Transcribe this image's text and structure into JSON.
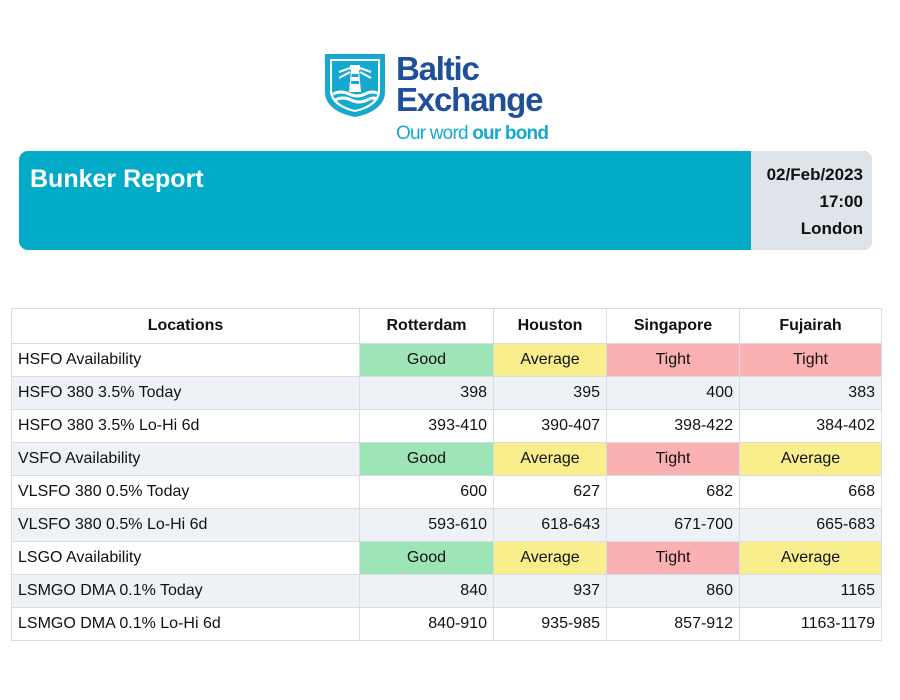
{
  "brand": {
    "name_line1": "Baltic",
    "name_line2": "Exchange",
    "tagline_regular": "Our word ",
    "tagline_bold": "our bond",
    "colors": {
      "navy": "#1f4f9a",
      "cyan": "#16a9cf"
    }
  },
  "header": {
    "title": "Bunker Report",
    "date": "02/Feb/2023",
    "time": "17:00",
    "city": "London",
    "colors": {
      "banner": "#02acc9",
      "meta_panel": "#dfe3ea"
    }
  },
  "table": {
    "columns": [
      "Locations",
      "Rotterdam",
      "Houston",
      "Singapore",
      "Fujairah"
    ],
    "rows": [
      {
        "label": "HSFO Availability",
        "type": "availability",
        "cells": [
          "Good",
          "Average",
          "Tight",
          "Tight"
        ]
      },
      {
        "label": "HSFO 380 3.5% Today",
        "type": "value",
        "cells": [
          "398",
          "395",
          "400",
          "383"
        ]
      },
      {
        "label": "HSFO 380 3.5% Lo-Hi 6d",
        "type": "value",
        "cells": [
          "393-410",
          "390-407",
          "398-422",
          "384-402"
        ]
      },
      {
        "label": "VSFO Availability",
        "type": "availability",
        "cells": [
          "Good",
          "Average",
          "Tight",
          "Average"
        ]
      },
      {
        "label": "VLSFO 380 0.5% Today",
        "type": "value",
        "cells": [
          "600",
          "627",
          "682",
          "668"
        ]
      },
      {
        "label": "VLSFO 380 0.5% Lo-Hi 6d",
        "type": "value",
        "cells": [
          "593-610",
          "618-643",
          "671-700",
          "665-683"
        ]
      },
      {
        "label": "LSGO Availability",
        "type": "availability",
        "cells": [
          "Good",
          "Average",
          "Tight",
          "Average"
        ]
      },
      {
        "label": "LSMGO DMA 0.1% Today",
        "type": "value",
        "cells": [
          "840",
          "937",
          "860",
          "1165"
        ]
      },
      {
        "label": "LSMGO DMA 0.1% Lo-Hi 6d",
        "type": "value",
        "cells": [
          "840-910",
          "935-985",
          "857-912",
          "1163-1179"
        ]
      }
    ],
    "status_colors": {
      "Good": "#9de4b6",
      "Average": "#f8ef8c",
      "Tight": "#fbb0b2"
    }
  }
}
